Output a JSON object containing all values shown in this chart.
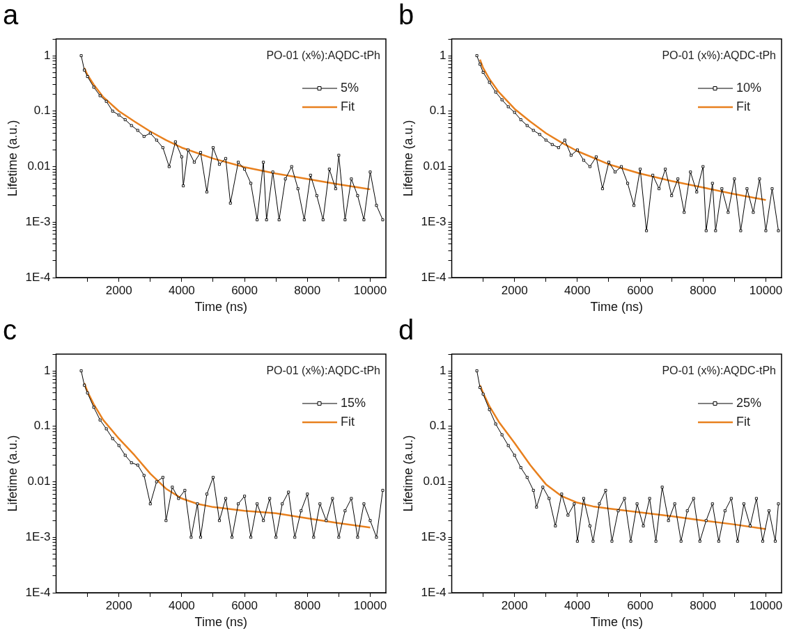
{
  "chart_data": [
    {
      "type": "line",
      "title": "a",
      "xlabel": "Time (ns)",
      "ylabel": "Lifetime (a.u.)",
      "annotations": [
        "PO-01 (x%):AQDC-tPh"
      ],
      "log": "y",
      "grid": false,
      "legend": "top right",
      "xlim": [
        0,
        10500
      ],
      "ylim": [
        0.0001,
        2
      ],
      "xticks": [
        {
          "value": 1000,
          "label": null
        },
        2000,
        {
          "value": 3000,
          "label": null
        },
        4000,
        {
          "value": 5000,
          "label": null
        },
        6000,
        {
          "value": 7000,
          "label": null
        },
        8000,
        {
          "value": 9000,
          "label": null
        },
        10000
      ],
      "yticks": [
        {
          "value": 0.0001,
          "label": "1E-4"
        },
        {
          "value": 0.0002,
          "label": null
        },
        {
          "value": 0.0003,
          "label": null
        },
        {
          "value": 0.0004,
          "label": null
        },
        {
          "value": 0.0005,
          "label": null
        },
        {
          "value": 0.0006,
          "label": null
        },
        {
          "value": 0.0007,
          "label": null
        },
        {
          "value": 0.0008,
          "label": null
        },
        {
          "value": 0.0009,
          "label": null
        },
        {
          "value": 0.001,
          "label": "1E-3"
        },
        {
          "value": 0.002,
          "label": null
        },
        {
          "value": 0.003,
          "label": null
        },
        {
          "value": 0.004,
          "label": null
        },
        {
          "value": 0.005,
          "label": null
        },
        {
          "value": 0.006,
          "label": null
        },
        {
          "value": 0.007,
          "label": null
        },
        {
          "value": 0.008,
          "label": null
        },
        {
          "value": 0.009,
          "label": null
        },
        0.01,
        {
          "value": 0.02,
          "label": null
        },
        {
          "value": 0.03,
          "label": null
        },
        {
          "value": 0.04,
          "label": null
        },
        {
          "value": 0.05,
          "label": null
        },
        {
          "value": 0.06,
          "label": null
        },
        {
          "value": 0.07,
          "label": null
        },
        {
          "value": 0.08,
          "label": null
        },
        {
          "value": 0.09,
          "label": null
        },
        0.1,
        {
          "value": 0.2,
          "label": null
        },
        {
          "value": 0.3,
          "label": null
        },
        {
          "value": 0.4,
          "label": null
        },
        {
          "value": 0.5,
          "label": null
        },
        {
          "value": 0.6,
          "label": null
        },
        {
          "value": 0.7,
          "label": null
        },
        {
          "value": 0.8,
          "label": null
        },
        {
          "value": 0.9,
          "label": null
        },
        1,
        {
          "value": 2,
          "label": null
        }
      ],
      "series": [
        {
          "name": "5%",
          "color": "#000000",
          "marker": "square",
          "x": [
            800,
            900,
            1000,
            1200,
            1400,
            1600,
            1800,
            2000,
            2200,
            2400,
            2600,
            2800,
            3000,
            3200,
            3400,
            3600,
            3800,
            4000,
            4050,
            4200,
            4400,
            4600,
            4800,
            5000,
            5200,
            5400,
            5550,
            5800,
            6000,
            6200,
            6400,
            6600,
            6700,
            6900,
            7100,
            7300,
            7500,
            7700,
            7900,
            8100,
            8300,
            8500,
            8700,
            8900,
            9000,
            9200,
            9400,
            9600,
            9800,
            10000,
            10200,
            10400
          ],
          "values": [
            1.0,
            0.55,
            0.42,
            0.27,
            0.19,
            0.15,
            0.1,
            0.085,
            0.07,
            0.055,
            0.045,
            0.035,
            0.04,
            0.03,
            0.022,
            0.01,
            0.028,
            0.015,
            0.0045,
            0.02,
            0.012,
            0.018,
            0.0035,
            0.022,
            0.011,
            0.014,
            0.0022,
            0.012,
            0.009,
            0.005,
            0.0011,
            0.012,
            0.0011,
            0.008,
            0.0011,
            0.006,
            0.01,
            0.004,
            0.0011,
            0.007,
            0.003,
            0.0011,
            0.009,
            0.004,
            0.016,
            0.0011,
            0.006,
            0.003,
            0.0011,
            0.008,
            0.002,
            0.0011
          ]
        },
        {
          "name": "Fit",
          "color": "#e8801e",
          "marker": "none",
          "x": [
            900,
            1000,
            1200,
            1500,
            2000,
            2500,
            3000,
            3500,
            4000,
            5000,
            6000,
            7000,
            8000,
            9000,
            10000
          ],
          "values": [
            0.6,
            0.45,
            0.3,
            0.18,
            0.1,
            0.065,
            0.043,
            0.03,
            0.022,
            0.014,
            0.0098,
            0.0075,
            0.006,
            0.0048,
            0.0039
          ]
        }
      ]
    },
    {
      "type": "line",
      "title": "b",
      "xlabel": "Time (ns)",
      "ylabel": "Lifetime (a.u.)",
      "annotations": [
        "PO-01 (x%):AQDC-tPh"
      ],
      "log": "y",
      "grid": false,
      "legend": "top right",
      "xlim": [
        0,
        10500
      ],
      "ylim": [
        0.0001,
        2
      ],
      "xticks": [
        {
          "value": 1000,
          "label": null
        },
        2000,
        {
          "value": 3000,
          "label": null
        },
        4000,
        {
          "value": 5000,
          "label": null
        },
        6000,
        {
          "value": 7000,
          "label": null
        },
        8000,
        {
          "value": 9000,
          "label": null
        },
        10000
      ],
      "yticks": [
        {
          "value": 0.0001,
          "label": "1E-4"
        },
        {
          "value": 0.0002,
          "label": null
        },
        {
          "value": 0.0003,
          "label": null
        },
        {
          "value": 0.0004,
          "label": null
        },
        {
          "value": 0.0005,
          "label": null
        },
        {
          "value": 0.0006,
          "label": null
        },
        {
          "value": 0.0007,
          "label": null
        },
        {
          "value": 0.0008,
          "label": null
        },
        {
          "value": 0.0009,
          "label": null
        },
        {
          "value": 0.001,
          "label": "1E-3"
        },
        {
          "value": 0.002,
          "label": null
        },
        {
          "value": 0.003,
          "label": null
        },
        {
          "value": 0.004,
          "label": null
        },
        {
          "value": 0.005,
          "label": null
        },
        {
          "value": 0.006,
          "label": null
        },
        {
          "value": 0.007,
          "label": null
        },
        {
          "value": 0.008,
          "label": null
        },
        {
          "value": 0.009,
          "label": null
        },
        0.01,
        {
          "value": 0.02,
          "label": null
        },
        {
          "value": 0.03,
          "label": null
        },
        {
          "value": 0.04,
          "label": null
        },
        {
          "value": 0.05,
          "label": null
        },
        {
          "value": 0.06,
          "label": null
        },
        {
          "value": 0.07,
          "label": null
        },
        {
          "value": 0.08,
          "label": null
        },
        {
          "value": 0.09,
          "label": null
        },
        0.1,
        {
          "value": 0.2,
          "label": null
        },
        {
          "value": 0.3,
          "label": null
        },
        {
          "value": 0.4,
          "label": null
        },
        {
          "value": 0.5,
          "label": null
        },
        {
          "value": 0.6,
          "label": null
        },
        {
          "value": 0.7,
          "label": null
        },
        {
          "value": 0.8,
          "label": null
        },
        {
          "value": 0.9,
          "label": null
        },
        1,
        {
          "value": 2,
          "label": null
        }
      ],
      "series": [
        {
          "name": "10%",
          "color": "#000000",
          "marker": "square",
          "x": [
            800,
            900,
            1000,
            1200,
            1400,
            1600,
            1800,
            2000,
            2200,
            2400,
            2600,
            2800,
            3000,
            3200,
            3400,
            3600,
            3800,
            4000,
            4200,
            4400,
            4600,
            4800,
            5000,
            5200,
            5400,
            5600,
            5800,
            6000,
            6200,
            6400,
            6600,
            6800,
            7000,
            7200,
            7400,
            7600,
            7800,
            8000,
            8100,
            8300,
            8400,
            8600,
            8800,
            9000,
            9200,
            9400,
            9600,
            9800,
            10000,
            10200,
            10400
          ],
          "values": [
            1.0,
            0.7,
            0.5,
            0.33,
            0.22,
            0.16,
            0.12,
            0.095,
            0.07,
            0.055,
            0.045,
            0.038,
            0.03,
            0.025,
            0.022,
            0.03,
            0.016,
            0.02,
            0.013,
            0.01,
            0.015,
            0.004,
            0.012,
            0.008,
            0.01,
            0.005,
            0.002,
            0.009,
            0.0007,
            0.007,
            0.004,
            0.009,
            0.003,
            0.006,
            0.0015,
            0.008,
            0.0035,
            0.01,
            0.0007,
            0.005,
            0.0007,
            0.004,
            0.0015,
            0.006,
            0.0007,
            0.004,
            0.0015,
            0.006,
            0.0007,
            0.004,
            0.0007
          ]
        },
        {
          "name": "Fit",
          "color": "#e8801e",
          "marker": "none",
          "x": [
            900,
            1000,
            1200,
            1500,
            2000,
            2500,
            3000,
            3500,
            4000,
            5000,
            6000,
            7000,
            8000,
            9000,
            10000
          ],
          "values": [
            0.85,
            0.6,
            0.38,
            0.22,
            0.11,
            0.065,
            0.04,
            0.027,
            0.019,
            0.011,
            0.0075,
            0.0055,
            0.0042,
            0.0032,
            0.0025
          ]
        }
      ]
    },
    {
      "type": "line",
      "title": "c",
      "xlabel": "Time (ns)",
      "ylabel": "Lifetime (a.u.)",
      "annotations": [
        "PO-01 (x%):AQDC-tPh"
      ],
      "log": "y",
      "grid": false,
      "legend": "top right",
      "xlim": [
        0,
        10500
      ],
      "ylim": [
        0.0001,
        2
      ],
      "xticks": [
        {
          "value": 1000,
          "label": null
        },
        2000,
        {
          "value": 3000,
          "label": null
        },
        4000,
        {
          "value": 5000,
          "label": null
        },
        6000,
        {
          "value": 7000,
          "label": null
        },
        8000,
        {
          "value": 9000,
          "label": null
        },
        10000
      ],
      "yticks": [
        {
          "value": 0.0001,
          "label": "1E-4"
        },
        {
          "value": 0.0002,
          "label": null
        },
        {
          "value": 0.0003,
          "label": null
        },
        {
          "value": 0.0004,
          "label": null
        },
        {
          "value": 0.0005,
          "label": null
        },
        {
          "value": 0.0006,
          "label": null
        },
        {
          "value": 0.0007,
          "label": null
        },
        {
          "value": 0.0008,
          "label": null
        },
        {
          "value": 0.0009,
          "label": null
        },
        {
          "value": 0.001,
          "label": "1E-3"
        },
        {
          "value": 0.002,
          "label": null
        },
        {
          "value": 0.003,
          "label": null
        },
        {
          "value": 0.004,
          "label": null
        },
        {
          "value": 0.005,
          "label": null
        },
        {
          "value": 0.006,
          "label": null
        },
        {
          "value": 0.007,
          "label": null
        },
        {
          "value": 0.008,
          "label": null
        },
        {
          "value": 0.009,
          "label": null
        },
        0.01,
        {
          "value": 0.02,
          "label": null
        },
        {
          "value": 0.03,
          "label": null
        },
        {
          "value": 0.04,
          "label": null
        },
        {
          "value": 0.05,
          "label": null
        },
        {
          "value": 0.06,
          "label": null
        },
        {
          "value": 0.07,
          "label": null
        },
        {
          "value": 0.08,
          "label": null
        },
        {
          "value": 0.09,
          "label": null
        },
        0.1,
        {
          "value": 0.2,
          "label": null
        },
        {
          "value": 0.3,
          "label": null
        },
        {
          "value": 0.4,
          "label": null
        },
        {
          "value": 0.5,
          "label": null
        },
        {
          "value": 0.6,
          "label": null
        },
        {
          "value": 0.7,
          "label": null
        },
        {
          "value": 0.8,
          "label": null
        },
        {
          "value": 0.9,
          "label": null
        },
        1,
        {
          "value": 2,
          "label": null
        }
      ],
      "series": [
        {
          "name": "15%",
          "color": "#000000",
          "marker": "square",
          "x": [
            800,
            900,
            1000,
            1200,
            1400,
            1600,
            1800,
            2000,
            2200,
            2400,
            2600,
            2800,
            3000,
            3200,
            3400,
            3500,
            3700,
            3900,
            4100,
            4300,
            4500,
            4600,
            4800,
            5000,
            5200,
            5400,
            5600,
            5800,
            6000,
            6200,
            6400,
            6600,
            6800,
            7000,
            7200,
            7400,
            7600,
            7800,
            8000,
            8200,
            8400,
            8600,
            8800,
            9000,
            9200,
            9400,
            9600,
            9800,
            10000,
            10200,
            10400
          ],
          "values": [
            1.0,
            0.55,
            0.4,
            0.22,
            0.13,
            0.09,
            0.06,
            0.045,
            0.03,
            0.022,
            0.02,
            0.013,
            0.004,
            0.01,
            0.012,
            0.002,
            0.008,
            0.005,
            0.007,
            0.001,
            0.004,
            0.001,
            0.006,
            0.012,
            0.002,
            0.005,
            0.001,
            0.004,
            0.0055,
            0.001,
            0.004,
            0.002,
            0.005,
            0.001,
            0.004,
            0.0065,
            0.001,
            0.003,
            0.006,
            0.001,
            0.004,
            0.002,
            0.005,
            0.001,
            0.003,
            0.005,
            0.001,
            0.004,
            0.002,
            0.001,
            0.007
          ]
        },
        {
          "name": "Fit",
          "color": "#e8801e",
          "marker": "none",
          "x": [
            900,
            1000,
            1200,
            1500,
            2000,
            2500,
            3000,
            3500,
            4000,
            4500,
            5000,
            6000,
            7000,
            8000,
            9000,
            10000
          ],
          "values": [
            0.6,
            0.42,
            0.25,
            0.13,
            0.06,
            0.03,
            0.014,
            0.0075,
            0.005,
            0.004,
            0.0035,
            0.003,
            0.0027,
            0.0022,
            0.0018,
            0.0015
          ]
        }
      ]
    },
    {
      "type": "line",
      "title": "d",
      "xlabel": "Time (ns)",
      "ylabel": "Lifetime (a.u.)",
      "annotations": [
        "PO-01 (x%):AQDC-tPh"
      ],
      "log": "y",
      "grid": false,
      "legend": "top right",
      "xlim": [
        0,
        10500
      ],
      "ylim": [
        0.0001,
        2
      ],
      "xticks": [
        {
          "value": 1000,
          "label": null
        },
        2000,
        {
          "value": 3000,
          "label": null
        },
        4000,
        {
          "value": 5000,
          "label": null
        },
        6000,
        {
          "value": 7000,
          "label": null
        },
        8000,
        {
          "value": 9000,
          "label": null
        },
        10000
      ],
      "yticks": [
        {
          "value": 0.0001,
          "label": "1E-4"
        },
        {
          "value": 0.0002,
          "label": null
        },
        {
          "value": 0.0003,
          "label": null
        },
        {
          "value": 0.0004,
          "label": null
        },
        {
          "value": 0.0005,
          "label": null
        },
        {
          "value": 0.0006,
          "label": null
        },
        {
          "value": 0.0007,
          "label": null
        },
        {
          "value": 0.0008,
          "label": null
        },
        {
          "value": 0.0009,
          "label": null
        },
        {
          "value": 0.001,
          "label": "1E-3"
        },
        {
          "value": 0.002,
          "label": null
        },
        {
          "value": 0.003,
          "label": null
        },
        {
          "value": 0.004,
          "label": null
        },
        {
          "value": 0.005,
          "label": null
        },
        {
          "value": 0.006,
          "label": null
        },
        {
          "value": 0.007,
          "label": null
        },
        {
          "value": 0.008,
          "label": null
        },
        {
          "value": 0.009,
          "label": null
        },
        0.01,
        {
          "value": 0.02,
          "label": null
        },
        {
          "value": 0.03,
          "label": null
        },
        {
          "value": 0.04,
          "label": null
        },
        {
          "value": 0.05,
          "label": null
        },
        {
          "value": 0.06,
          "label": null
        },
        {
          "value": 0.07,
          "label": null
        },
        {
          "value": 0.08,
          "label": null
        },
        {
          "value": 0.09,
          "label": null
        },
        0.1,
        {
          "value": 0.2,
          "label": null
        },
        {
          "value": 0.3,
          "label": null
        },
        {
          "value": 0.4,
          "label": null
        },
        {
          "value": 0.5,
          "label": null
        },
        {
          "value": 0.6,
          "label": null
        },
        {
          "value": 0.7,
          "label": null
        },
        {
          "value": 0.8,
          "label": null
        },
        {
          "value": 0.9,
          "label": null
        },
        1,
        {
          "value": 2,
          "label": null
        }
      ],
      "series": [
        {
          "name": "25%",
          "color": "#000000",
          "marker": "square",
          "x": [
            800,
            900,
            1000,
            1200,
            1400,
            1600,
            1800,
            2000,
            2200,
            2400,
            2600,
            2700,
            2900,
            3100,
            3300,
            3500,
            3700,
            3900,
            4000,
            4200,
            4400,
            4500,
            4700,
            4900,
            5100,
            5300,
            5500,
            5700,
            5900,
            6100,
            6300,
            6500,
            6700,
            6900,
            7100,
            7300,
            7500,
            7700,
            7900,
            8100,
            8300,
            8500,
            8700,
            8900,
            9100,
            9300,
            9500,
            9700,
            9900,
            10100,
            10300,
            10400
          ],
          "values": [
            1.0,
            0.5,
            0.38,
            0.2,
            0.11,
            0.07,
            0.045,
            0.03,
            0.018,
            0.012,
            0.007,
            0.0035,
            0.008,
            0.005,
            0.0016,
            0.006,
            0.0025,
            0.004,
            0.00085,
            0.005,
            0.0016,
            0.00085,
            0.004,
            0.007,
            0.00085,
            0.003,
            0.005,
            0.00085,
            0.004,
            0.0016,
            0.005,
            0.00085,
            0.008,
            0.002,
            0.004,
            0.00085,
            0.003,
            0.005,
            0.00085,
            0.002,
            0.004,
            0.00085,
            0.003,
            0.005,
            0.00085,
            0.004,
            0.0016,
            0.005,
            0.00085,
            0.003,
            0.00085,
            0.004
          ]
        },
        {
          "name": "Fit",
          "color": "#e8801e",
          "marker": "none",
          "x": [
            900,
            1000,
            1200,
            1500,
            2000,
            2500,
            3000,
            3500,
            4000,
            4500,
            5000,
            6000,
            7000,
            8000,
            9000,
            10000
          ],
          "values": [
            0.55,
            0.4,
            0.23,
            0.12,
            0.05,
            0.02,
            0.009,
            0.0055,
            0.0042,
            0.0036,
            0.0033,
            0.0028,
            0.0024,
            0.002,
            0.0017,
            0.0014
          ]
        }
      ]
    }
  ]
}
